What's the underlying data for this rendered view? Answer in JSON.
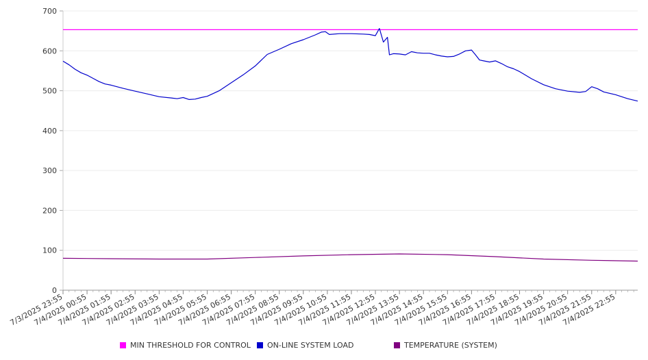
{
  "chart_data": {
    "type": "line",
    "title": "",
    "xlabel": "",
    "ylabel": "",
    "ylim": [
      0,
      700
    ],
    "yticks": [
      0,
      100,
      200,
      300,
      400,
      500,
      600,
      700
    ],
    "grid": true,
    "legend_position": "bottom",
    "xticks": [
      "7/3/2025 23:55",
      "7/4/2025 00:55",
      "7/4/2025 01:55",
      "7/4/2025 02:55",
      "7/4/2025 03:55",
      "7/4/2025 04:55",
      "7/4/2025 05:55",
      "7/4/2025 06:55",
      "7/4/2025 07:55",
      "7/4/2025 08:55",
      "7/4/2025 09:55",
      "7/4/2025 10:55",
      "7/4/2025 11:55",
      "7/4/2025 12:55",
      "7/4/2025 13:55",
      "7/4/2025 14:55",
      "7/4/2025 15:55",
      "7/4/2025 16:55",
      "7/4/2025 17:55",
      "7/4/2025 18:55",
      "7/4/2025 19:55",
      "7/4/2025 20:55",
      "7/4/2025 21:55",
      "7/4/2025 22:55"
    ],
    "series": [
      {
        "name": "MIN THRESHOLD FOR CONTROL",
        "color": "#ff00ff",
        "x": [
          "7/3/2025 23:55",
          "7/4/2025 23:50"
        ],
        "values": [
          653,
          653
        ]
      },
      {
        "name": "ON-LINE SYSTEM LOAD",
        "color": "#0000cc",
        "x": [
          "7/3/2025 23:55",
          "7/4/2025 00:10",
          "7/4/2025 00:25",
          "7/4/2025 00:40",
          "7/4/2025 00:55",
          "7/4/2025 01:10",
          "7/4/2025 01:25",
          "7/4/2025 01:40",
          "7/4/2025 01:55",
          "7/4/2025 02:25",
          "7/4/2025 02:55",
          "7/4/2025 03:25",
          "7/4/2025 03:55",
          "7/4/2025 04:25",
          "7/4/2025 04:40",
          "7/4/2025 04:55",
          "7/4/2025 05:10",
          "7/4/2025 05:25",
          "7/4/2025 05:40",
          "7/4/2025 05:55",
          "7/4/2025 06:25",
          "7/4/2025 06:55",
          "7/4/2025 07:25",
          "7/4/2025 07:55",
          "7/4/2025 08:25",
          "7/4/2025 08:55",
          "7/4/2025 09:25",
          "7/4/2025 09:55",
          "7/4/2025 10:25",
          "7/4/2025 10:40",
          "7/4/2025 10:50",
          "7/4/2025 11:00",
          "7/4/2025 11:25",
          "7/4/2025 11:55",
          "7/4/2025 12:25",
          "7/4/2025 12:40",
          "7/4/2025 12:55",
          "7/4/2025 13:05",
          "7/4/2025 13:15",
          "7/4/2025 13:25",
          "7/4/2025 13:30",
          "7/4/2025 13:40",
          "7/4/2025 13:55",
          "7/4/2025 14:10",
          "7/4/2025 14:25",
          "7/4/2025 14:40",
          "7/4/2025 14:55",
          "7/4/2025 15:10",
          "7/4/2025 15:25",
          "7/4/2025 15:40",
          "7/4/2025 15:55",
          "7/4/2025 16:10",
          "7/4/2025 16:25",
          "7/4/2025 16:40",
          "7/4/2025 16:55",
          "7/4/2025 17:05",
          "7/4/2025 17:15",
          "7/4/2025 17:25",
          "7/4/2025 17:40",
          "7/4/2025 17:55",
          "7/4/2025 18:10",
          "7/4/2025 18:25",
          "7/4/2025 18:40",
          "7/4/2025 18:55",
          "7/4/2025 19:25",
          "7/4/2025 19:55",
          "7/4/2025 20:25",
          "7/4/2025 20:55",
          "7/4/2025 21:25",
          "7/4/2025 21:40",
          "7/4/2025 21:55",
          "7/4/2025 22:10",
          "7/4/2025 22:25",
          "7/4/2025 22:55",
          "7/4/2025 23:25",
          "7/4/2025 23:50"
        ],
        "values": [
          574,
          565,
          554,
          545,
          539,
          531,
          523,
          517,
          514,
          506,
          499,
          492,
          485,
          482,
          480,
          483,
          478,
          479,
          483,
          486,
          500,
          520,
          540,
          562,
          591,
          604,
          618,
          628,
          640,
          647,
          648,
          641,
          643,
          643,
          642,
          641,
          638,
          656,
          622,
          634,
          590,
          593,
          592,
          590,
          598,
          595,
          594,
          594,
          590,
          587,
          585,
          586,
          592,
          600,
          602,
          590,
          577,
          575,
          572,
          575,
          568,
          560,
          555,
          548,
          530,
          515,
          505,
          499,
          496,
          498,
          510,
          505,
          497,
          490,
          480,
          474
        ]
      },
      {
        "name": "TEMPERATURE (SYSTEM)",
        "color": "#800080",
        "x": [
          "7/3/2025 23:55",
          "7/4/2025 01:55",
          "7/4/2025 03:55",
          "7/4/2025 05:55",
          "7/4/2025 07:55",
          "7/4/2025 09:55",
          "7/4/2025 11:55",
          "7/4/2025 13:55",
          "7/4/2025 15:55",
          "7/4/2025 17:55",
          "7/4/2025 19:55",
          "7/4/2025 21:55",
          "7/4/2025 23:50"
        ],
        "values": [
          80,
          79,
          78,
          78,
          82,
          86,
          89,
          91,
          89,
          84,
          78,
          75,
          73
        ]
      }
    ]
  }
}
